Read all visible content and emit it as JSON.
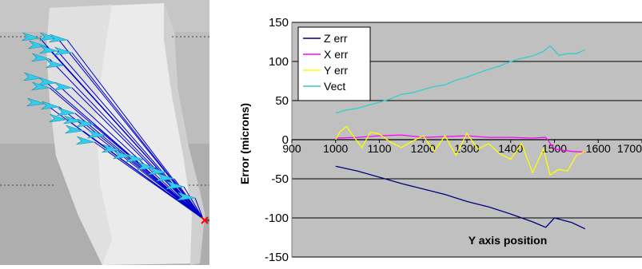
{
  "chart_data": {
    "type": "line",
    "xlabel": "Y axis position",
    "ylabel": "Error (microns)",
    "xlim": [
      900,
      1700
    ],
    "ylim": [
      -150,
      150
    ],
    "x_ticks": [
      "900",
      "1000",
      "1100",
      "1200",
      "1300",
      "1400",
      "1500",
      "1600",
      "1700"
    ],
    "y_ticks": [
      "150",
      "100",
      "50",
      "0",
      "-50",
      "-100",
      "-150"
    ],
    "grid": true,
    "legend_position": "top-left",
    "series": [
      {
        "name": "Z err",
        "color": "#000080",
        "x": [
          1000,
          1050,
          1100,
          1150,
          1200,
          1250,
          1300,
          1350,
          1400,
          1450,
          1480,
          1500,
          1540,
          1570
        ],
        "y": [
          -34,
          -40,
          -48,
          -56,
          -63,
          -70,
          -79,
          -86,
          -95,
          -105,
          -112,
          -100,
          -106,
          -114
        ]
      },
      {
        "name": "X err",
        "color": "#ff00ff",
        "x": [
          1000,
          1050,
          1100,
          1150,
          1200,
          1250,
          1300,
          1350,
          1400,
          1450,
          1480,
          1500,
          1540,
          1570
        ],
        "y": [
          2,
          3,
          5,
          6,
          3,
          4,
          5,
          3,
          3,
          2,
          3,
          -12,
          -15,
          -16
        ]
      },
      {
        "name": "Y err",
        "color": "#ffff00",
        "x": [
          1000,
          1010,
          1025,
          1040,
          1060,
          1080,
          1100,
          1125,
          1150,
          1175,
          1200,
          1225,
          1250,
          1275,
          1300,
          1325,
          1350,
          1375,
          1400,
          1425,
          1450,
          1475,
          1490,
          1510,
          1530,
          1550,
          1570
        ],
        "y": [
          0,
          10,
          17,
          5,
          -10,
          10,
          7,
          -3,
          -10,
          -2,
          5,
          -15,
          5,
          -20,
          8,
          -12,
          -5,
          -18,
          -25,
          -5,
          -42,
          -12,
          -45,
          -38,
          -40,
          -20,
          -15
        ]
      },
      {
        "name": "Vect",
        "color": "#33cccc",
        "x": [
          1000,
          1025,
          1050,
          1075,
          1100,
          1125,
          1150,
          1175,
          1200,
          1225,
          1250,
          1275,
          1300,
          1325,
          1350,
          1375,
          1400,
          1425,
          1450,
          1475,
          1490,
          1510,
          1530,
          1550,
          1570
        ],
        "y": [
          34,
          38,
          40,
          44,
          48,
          52,
          58,
          60,
          64,
          68,
          70,
          76,
          80,
          85,
          90,
          94,
          100,
          104,
          107,
          113,
          120,
          108,
          110,
          110,
          115
        ]
      }
    ]
  },
  "visualization": {
    "arrow_color": "#33ccee",
    "line_color": "#0000cc",
    "marker_color": "#ff0000"
  }
}
